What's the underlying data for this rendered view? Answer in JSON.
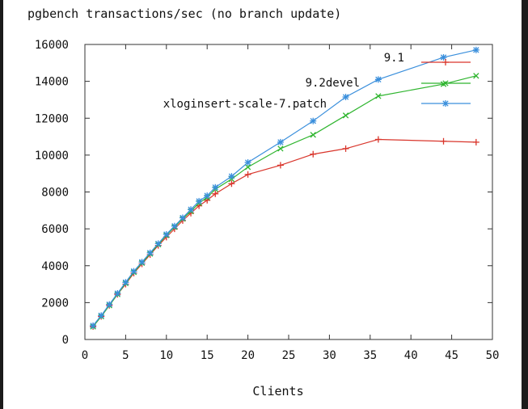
{
  "chart_data": {
    "type": "line",
    "title": "pgbench transactions/sec (no branch update)",
    "xlabel": "Clients",
    "ylabel": "",
    "xlim": [
      0,
      50
    ],
    "ylim": [
      0,
      16000
    ],
    "xticks": [
      0,
      5,
      10,
      15,
      20,
      25,
      30,
      35,
      40,
      45,
      50
    ],
    "yticks": [
      0,
      2000,
      4000,
      6000,
      8000,
      10000,
      12000,
      14000,
      16000
    ],
    "grid": false,
    "legend_position": "top-right",
    "series": [
      {
        "name": "9.1",
        "color": "#d9352b",
        "marker": "plus",
        "x": [
          1,
          2,
          3,
          4,
          5,
          6,
          7,
          8,
          9,
          10,
          11,
          12,
          13,
          14,
          15,
          16,
          18,
          20,
          24,
          28,
          32,
          36,
          44,
          48
        ],
        "y": [
          700,
          1250,
          1850,
          2450,
          3000,
          3600,
          4100,
          4600,
          5100,
          5550,
          6000,
          6450,
          6850,
          7250,
          7550,
          7900,
          8450,
          8950,
          9450,
          10050,
          10350,
          10850,
          10750,
          10700
        ]
      },
      {
        "name": "9.2devel",
        "color": "#2fb52f",
        "marker": "cross",
        "x": [
          1,
          2,
          3,
          4,
          5,
          6,
          7,
          8,
          9,
          10,
          11,
          12,
          13,
          14,
          15,
          16,
          18,
          20,
          24,
          28,
          32,
          36,
          44,
          48
        ],
        "y": [
          700,
          1250,
          1850,
          2450,
          3050,
          3650,
          4150,
          4650,
          5150,
          5650,
          6100,
          6550,
          6950,
          7400,
          7700,
          8150,
          8700,
          9350,
          10350,
          11100,
          12150,
          13200,
          13850,
          14300
        ]
      },
      {
        "name": "xloginsert-scale-7.patch",
        "color": "#3a8fdc",
        "marker": "star",
        "x": [
          1,
          2,
          3,
          4,
          5,
          6,
          7,
          8,
          9,
          10,
          11,
          12,
          13,
          14,
          15,
          16,
          18,
          20,
          24,
          28,
          32,
          36,
          44,
          48
        ],
        "y": [
          750,
          1300,
          1900,
          2500,
          3100,
          3700,
          4200,
          4700,
          5200,
          5700,
          6150,
          6600,
          7050,
          7500,
          7800,
          8250,
          8850,
          9600,
          10700,
          11850,
          13150,
          14100,
          15300,
          15700
        ]
      }
    ]
  }
}
